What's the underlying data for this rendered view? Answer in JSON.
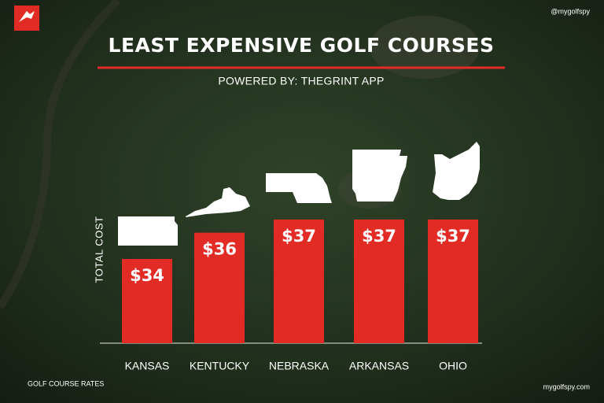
{
  "chart_data": {
    "type": "bar",
    "title": "LEAST EXPENSIVE GOLF COURSES",
    "subtitle": "POWERED BY: THEGRINT APP",
    "ylabel": "TOTAL COST",
    "watermark": "@mygolfspy",
    "footnote": "GOLF COURSE RATES",
    "source": "mygolfspy.com",
    "categories": [
      "KANSAS",
      "KENTUCKY",
      "NEBRASKA",
      "ARKANSAS",
      "OHIO"
    ],
    "values": [
      34,
      36,
      37,
      37,
      37
    ],
    "value_labels": [
      "$34",
      "$36",
      "$37",
      "$37",
      "$37"
    ],
    "color": "#e32b26"
  }
}
